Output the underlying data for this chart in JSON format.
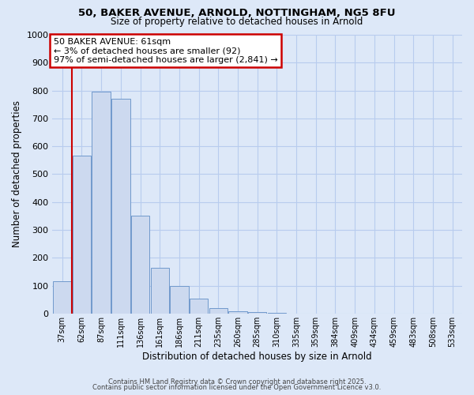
{
  "title_line1": "50, BAKER AVENUE, ARNOLD, NOTTINGHAM, NG5 8FU",
  "title_line2": "Size of property relative to detached houses in Arnold",
  "xlabel": "Distribution of detached houses by size in Arnold",
  "ylabel": "Number of detached properties",
  "bar_labels": [
    "37sqm",
    "62sqm",
    "87sqm",
    "111sqm",
    "136sqm",
    "161sqm",
    "186sqm",
    "211sqm",
    "235sqm",
    "260sqm",
    "285sqm",
    "310sqm",
    "335sqm",
    "359sqm",
    "384sqm",
    "409sqm",
    "434sqm",
    "459sqm",
    "483sqm",
    "508sqm",
    "533sqm"
  ],
  "bar_values": [
    115,
    565,
    795,
    770,
    350,
    165,
    98,
    53,
    18,
    8,
    5,
    1,
    0,
    0,
    0,
    0,
    0,
    0,
    0,
    0,
    0
  ],
  "bar_color": "#ccd9ef",
  "bar_edge_color": "#7099cc",
  "vline_x_index": 1,
  "vline_color": "#cc0000",
  "ylim": [
    0,
    1000
  ],
  "yticks": [
    0,
    100,
    200,
    300,
    400,
    500,
    600,
    700,
    800,
    900,
    1000
  ],
  "annotation_box_text": "50 BAKER AVENUE: 61sqm\n← 3% of detached houses are smaller (92)\n97% of semi-detached houses are larger (2,841) →",
  "annotation_box_color": "#cc0000",
  "annotation_text_color": "#000000",
  "background_color": "#dde8f8",
  "plot_bg_color": "#dde8f8",
  "grid_color": "#b8ccee",
  "footer_line1": "Contains HM Land Registry data © Crown copyright and database right 2025.",
  "footer_line2": "Contains public sector information licensed under the Open Government Licence v3.0."
}
